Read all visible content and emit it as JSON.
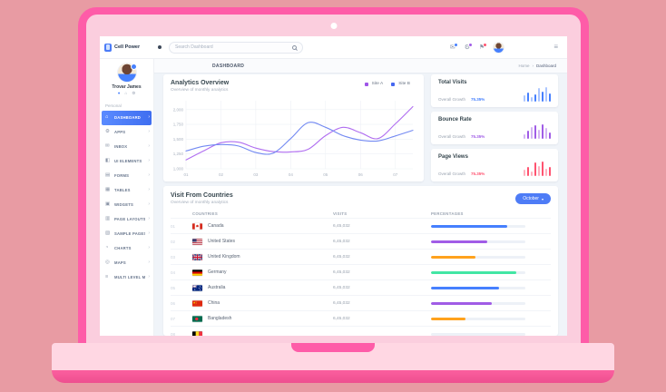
{
  "theme": {
    "accent_blue": "#4680fe",
    "purple": "#a05ce6",
    "red": "#ff5370",
    "orange": "#ffa21d",
    "green": "#42e6a4",
    "shell_pink": "#fe5ca8",
    "bezel_pink": "#fbcede",
    "base_pink": "#ffd7e3",
    "backdrop_salmon": "#e89ba3"
  },
  "navbar": {
    "brand": "Cell Power",
    "search_placeholder": "Search Dashboard",
    "icons": [
      {
        "name": "mail-icon",
        "glyph": "✉",
        "badge_color": "#4680fe"
      },
      {
        "name": "gear-icon",
        "glyph": "⚙",
        "badge_color": "#a05ce6"
      },
      {
        "name": "flag-icon",
        "glyph": "⚑",
        "badge_color": "#ff5370"
      }
    ]
  },
  "sidebar": {
    "user_name": "Trovar James",
    "section_label": "Personal",
    "items": [
      {
        "label": "DASHBOARD",
        "icon": "⌂",
        "active": true
      },
      {
        "label": "APPS",
        "icon": "⚙",
        "active": false
      },
      {
        "label": "INBOX",
        "icon": "✉",
        "active": false
      },
      {
        "label": "UI ELEMENTS",
        "icon": "◧",
        "active": false
      },
      {
        "label": "FORMS",
        "icon": "▤",
        "active": false
      },
      {
        "label": "TABLES",
        "icon": "▦",
        "active": false
      },
      {
        "label": "WIDGETS",
        "icon": "▣",
        "active": false
      },
      {
        "label": "PAGE LAYOUTS",
        "icon": "▥",
        "active": false
      },
      {
        "label": "SAMPLE PAGES",
        "icon": "▧",
        "active": false
      },
      {
        "label": "CHARTS",
        "icon": "◔",
        "active": false
      },
      {
        "label": "MAPS",
        "icon": "◎",
        "active": false
      },
      {
        "label": "MULTI LEVEL MENU",
        "icon": "≡",
        "active": false
      }
    ]
  },
  "page": {
    "title": "DASHBOARD",
    "breadcrumb_home": "Home",
    "breadcrumb_sep": "›",
    "breadcrumb_current": "Dashboard"
  },
  "analytics": {
    "title": "Analytics Overview",
    "subtitle": "Overview of monthly analytics",
    "legend": [
      {
        "label": "Site A",
        "color": "#9f55e8"
      },
      {
        "label": "Site B",
        "color": "#4668f0"
      }
    ]
  },
  "chart_data": {
    "type": "line",
    "title": "Analytics Overview",
    "x": [
      1,
      1.5,
      2,
      2.5,
      3,
      3.5,
      4,
      4.5,
      5,
      5.5,
      6,
      6.5,
      7,
      7.5
    ],
    "series": [
      {
        "name": "Site A",
        "color": "#b06ef0",
        "values": [
          1150,
          1300,
          1440,
          1450,
          1350,
          1290,
          1285,
          1330,
          1560,
          1700,
          1610,
          1510,
          1760,
          2050
        ]
      },
      {
        "name": "Site B",
        "color": "#7289f2",
        "values": [
          1300,
          1380,
          1410,
          1385,
          1275,
          1265,
          1510,
          1780,
          1700,
          1560,
          1485,
          1470,
          1555,
          1650
        ]
      }
    ],
    "xticks": [
      "01",
      "02",
      "03",
      "04",
      "05",
      "06",
      "07"
    ],
    "xtick_pos": [
      1,
      2,
      3,
      4,
      5,
      6,
      7
    ],
    "yticks": [
      "2,000",
      "1,750",
      "1,500",
      "1,250",
      "1,000"
    ],
    "ytick_vals": [
      2000,
      1750,
      1500,
      1250,
      1000
    ],
    "ylim": [
      1000,
      2150
    ],
    "grid": true,
    "legend_position": "top-right"
  },
  "stats": {
    "growth_label": "Overall Growth",
    "cards": [
      {
        "title": "Total Visits",
        "value": "75.35%",
        "color": "#4680fe",
        "bars": [
          45,
          60,
          30,
          50,
          95,
          70,
          100,
          55
        ]
      },
      {
        "title": "Bounce Rate",
        "value": "75.35%",
        "color": "#a05ce6",
        "bars": [
          30,
          55,
          80,
          95,
          65,
          100,
          75,
          45
        ]
      },
      {
        "title": "Page Views",
        "value": "75.35%",
        "color": "#ff5370",
        "bars": [
          45,
          60,
          30,
          95,
          70,
          100,
          50,
          65
        ]
      }
    ]
  },
  "countries": {
    "title": "Visit From Countries",
    "subtitle": "Overview of monthly analytics",
    "month_button": "October",
    "button_caret": "▾",
    "columns": [
      "COUNTRIES",
      "VISITS",
      "PERCENTAGES"
    ],
    "rows": [
      {
        "index": "01",
        "flag": "canada",
        "country": "Canada",
        "visits": "6,45,032",
        "pct": 81,
        "color": "#4680fe"
      },
      {
        "index": "02",
        "flag": "us",
        "country": "United States",
        "visits": "6,45,032",
        "pct": 60,
        "color": "#a05ce6"
      },
      {
        "index": "03",
        "flag": "uk",
        "country": "United Kingdom",
        "visits": "6,45,032",
        "pct": 47,
        "color": "#ffa21d"
      },
      {
        "index": "04",
        "flag": "germany",
        "country": "Germany",
        "visits": "6,45,032",
        "pct": 90,
        "color": "#42e6a4"
      },
      {
        "index": "05",
        "flag": "australia",
        "country": "Australia",
        "visits": "6,45,032",
        "pct": 72,
        "color": "#4680fe"
      },
      {
        "index": "06",
        "flag": "china",
        "country": "China",
        "visits": "6,45,032",
        "pct": 64,
        "color": "#a05ce6"
      },
      {
        "index": "07",
        "flag": "bangladesh",
        "country": "Bangladesh",
        "visits": "6,45,032",
        "pct": 37,
        "color": "#ffa21d"
      },
      {
        "index": "08",
        "flag": "belgium",
        "country": "",
        "visits": "",
        "pct": 0,
        "color": "#4680fe"
      }
    ]
  }
}
